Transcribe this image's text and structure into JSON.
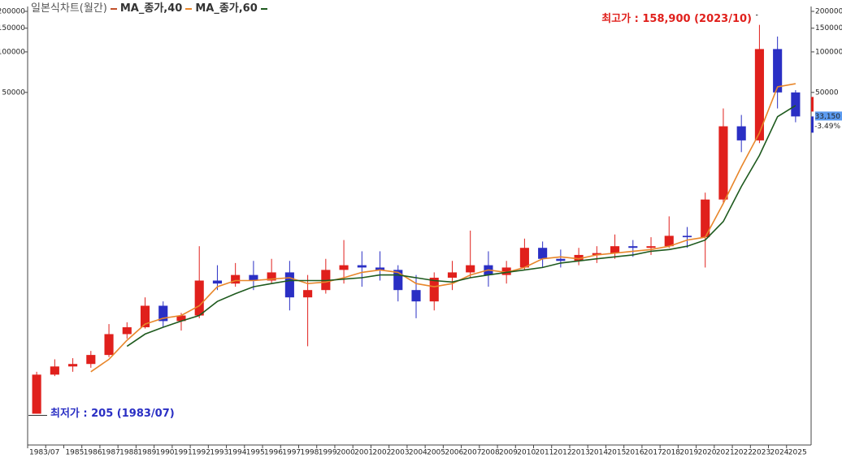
{
  "chart_data": {
    "type": "candlestick",
    "title": "일본식차트(월간)",
    "log_scale": true,
    "ylim": [
      120,
      210000
    ],
    "yticks": [
      50000,
      100000,
      150000,
      200000
    ],
    "up_color": "#e0201c",
    "down_color": "#2a2fc4",
    "categories": [
      "1983/07",
      null,
      "1985",
      "1986",
      "1987",
      "1988",
      "1989",
      "1990",
      "1991",
      "1992",
      "1993",
      "1994",
      "1995",
      "1996",
      "1997",
      "1998",
      "1999",
      "2000",
      "2001",
      "2002",
      "2003",
      "2004",
      "2005",
      "2006",
      "2007",
      "2008",
      "2009",
      "2010",
      "2011",
      "2012",
      "2013",
      "2014",
      "2015",
      "2016",
      "2017",
      "2018",
      "2019",
      "2020",
      "2021",
      "2022",
      "2023",
      "2024",
      "2025"
    ],
    "open": [
      205,
      400,
      460,
      480,
      560,
      800,
      900,
      1300,
      1000,
      1100,
      2000,
      1900,
      2200,
      2000,
      2300,
      1500,
      1700,
      2400,
      2600,
      2500,
      2400,
      1700,
      1400,
      2100,
      2300,
      2600,
      2200,
      2500,
      3500,
      2900,
      2800,
      3100,
      3200,
      3600,
      3500,
      3600,
      4300,
      4200,
      8000,
      28000,
      22000,
      105000,
      50000
    ],
    "high": [
      420,
      520,
      530,
      600,
      950,
      980,
      1500,
      1400,
      1150,
      3600,
      2600,
      2700,
      2800,
      2900,
      2800,
      2200,
      2900,
      4000,
      3300,
      3300,
      2600,
      2200,
      2300,
      2800,
      4700,
      3300,
      2800,
      4100,
      3900,
      3400,
      3500,
      3600,
      4400,
      4000,
      4200,
      6000,
      5000,
      9000,
      38000,
      34000,
      158900,
      130000,
      52000
    ],
    "low": [
      205,
      390,
      420,
      450,
      540,
      740,
      880,
      900,
      850,
      1050,
      1700,
      1800,
      1700,
      1900,
      1200,
      650,
      1600,
      1900,
      1800,
      2000,
      1400,
      1050,
      1200,
      1700,
      2100,
      1800,
      1900,
      2400,
      2500,
      2500,
      2600,
      2700,
      2900,
      3000,
      3100,
      3500,
      3500,
      2500,
      7500,
      18000,
      21000,
      38000,
      30000
    ],
    "close": [
      400,
      460,
      480,
      560,
      800,
      900,
      1300,
      1000,
      1100,
      2000,
      1900,
      2200,
      2000,
      2300,
      1500,
      1700,
      2400,
      2600,
      2500,
      2400,
      1700,
      1400,
      2100,
      2300,
      2600,
      2200,
      2500,
      3500,
      2900,
      2800,
      3100,
      3200,
      3600,
      3500,
      3600,
      4300,
      4200,
      8000,
      28000,
      22000,
      105000,
      50000,
      33150
    ],
    "series": [
      {
        "name": "MA_종가,40",
        "color": "#e8862a",
        "values": [
          null,
          null,
          null,
          420,
          520,
          720,
          950,
          1050,
          1100,
          1300,
          1800,
          2000,
          2000,
          2050,
          2100,
          1900,
          1950,
          2100,
          2300,
          2400,
          2300,
          1900,
          1800,
          1900,
          2200,
          2400,
          2300,
          2500,
          2900,
          3000,
          2900,
          3100,
          3200,
          3300,
          3400,
          3600,
          4000,
          4200,
          7500,
          14000,
          25000,
          55000,
          58000
        ]
      },
      {
        "name": "MA_종가,60",
        "color": "#1e5a1e",
        "values": [
          null,
          null,
          null,
          null,
          null,
          650,
          800,
          900,
          1000,
          1100,
          1400,
          1600,
          1800,
          1900,
          2000,
          2000,
          2000,
          2050,
          2100,
          2200,
          2200,
          2100,
          2000,
          1950,
          2100,
          2200,
          2300,
          2400,
          2500,
          2700,
          2800,
          2900,
          3000,
          3100,
          3300,
          3400,
          3600,
          4000,
          5500,
          10000,
          17000,
          33000,
          40000
        ]
      }
    ],
    "annotations": [
      {
        "text": "최고가 : 158,900 (2023/10)",
        "color": "#e0201c"
      },
      {
        "text": "최저가 : 205 (1983/07)",
        "color": "#2a2fc4"
      }
    ],
    "last_price": {
      "value": 33150,
      "label": "33,150"
    },
    "change": "-3.49%"
  }
}
